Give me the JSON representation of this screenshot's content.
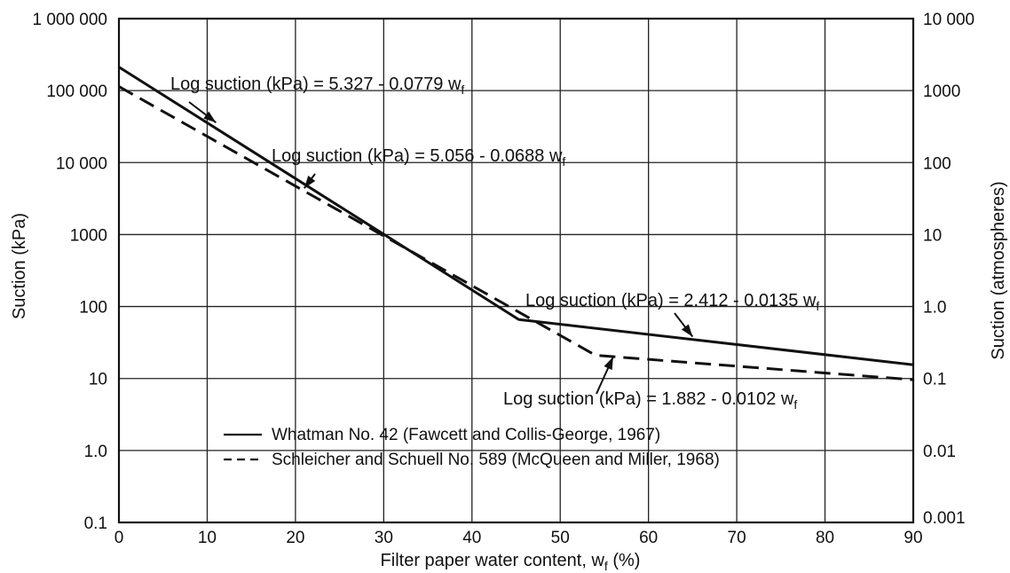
{
  "chart_data": {
    "type": "line",
    "xlabel": "Filter paper water content, w",
    "xlabel_sub": "f",
    "xlabel_suffix": " (%)",
    "ylabel_left": "Suction (kPa)",
    "ylabel_right": "Suction (atmospheres)",
    "xlim": [
      0,
      90
    ],
    "ylim_kpa": [
      0.1,
      1000000
    ],
    "y_scale": "log",
    "grid": true,
    "x_ticks": [
      {
        "value": 0,
        "label": "0"
      },
      {
        "value": 10,
        "label": "10"
      },
      {
        "value": 20,
        "label": "20"
      },
      {
        "value": 30,
        "label": "30"
      },
      {
        "value": 40,
        "label": "40"
      },
      {
        "value": 50,
        "label": "50"
      },
      {
        "value": 60,
        "label": "60"
      },
      {
        "value": 70,
        "label": "70"
      },
      {
        "value": 80,
        "label": "80"
      },
      {
        "value": 90,
        "label": "90"
      }
    ],
    "y_ticks_left": [
      {
        "value": 0.1,
        "label": "0.1"
      },
      {
        "value": 1,
        "label": "1.0"
      },
      {
        "value": 10,
        "label": "10"
      },
      {
        "value": 100,
        "label": "100"
      },
      {
        "value": 1000,
        "label": "1000"
      },
      {
        "value": 10000,
        "label": "10 000"
      },
      {
        "value": 100000,
        "label": "100 000"
      },
      {
        "value": 1000000,
        "label": "1 000 000"
      }
    ],
    "y_ticks_right": [
      {
        "value": 0.001,
        "label": "0.001"
      },
      {
        "value": 0.01,
        "label": "0.01"
      },
      {
        "value": 0.1,
        "label": "0.1"
      },
      {
        "value": 1,
        "label": "1.0"
      },
      {
        "value": 10,
        "label": "10"
      },
      {
        "value": 100,
        "label": "100"
      },
      {
        "value": 1000,
        "label": "1000"
      },
      {
        "value": 10000,
        "label": "10 000"
      }
    ],
    "series": [
      {
        "name": "Whatman No. 42 (Fawcett and Collis-George, 1967)",
        "style": "solid",
        "x": [
          0,
          45.3,
          90
        ],
        "y": [
          212324,
          66,
          15.5
        ]
      },
      {
        "name": "Schleicher and Schuell No. 589 (McQueen and Miller, 1968)",
        "style": "dashed",
        "x": [
          0,
          54,
          90
        ],
        "y": [
          113763,
          21,
          9.6
        ]
      }
    ],
    "annotations": [
      {
        "text": "Log suction  (kPa) = 5.327 - 0.0779 w",
        "sub": "f",
        "arrow_to": [
          11,
          36000
        ]
      },
      {
        "text": "Log suction  (kPa) = 5.056 - 0.0688 w",
        "sub": "f",
        "arrow_to": [
          21,
          4400
        ]
      },
      {
        "text": "Log suction (kPa) = 2.412 - 0.0135 w",
        "sub": "f",
        "arrow_to": [
          65,
          38
        ]
      },
      {
        "text": "Log suction (kPa) = 1.882 - 0.0102 w",
        "sub": "f",
        "arrow_to": [
          56,
          20
        ]
      }
    ]
  }
}
